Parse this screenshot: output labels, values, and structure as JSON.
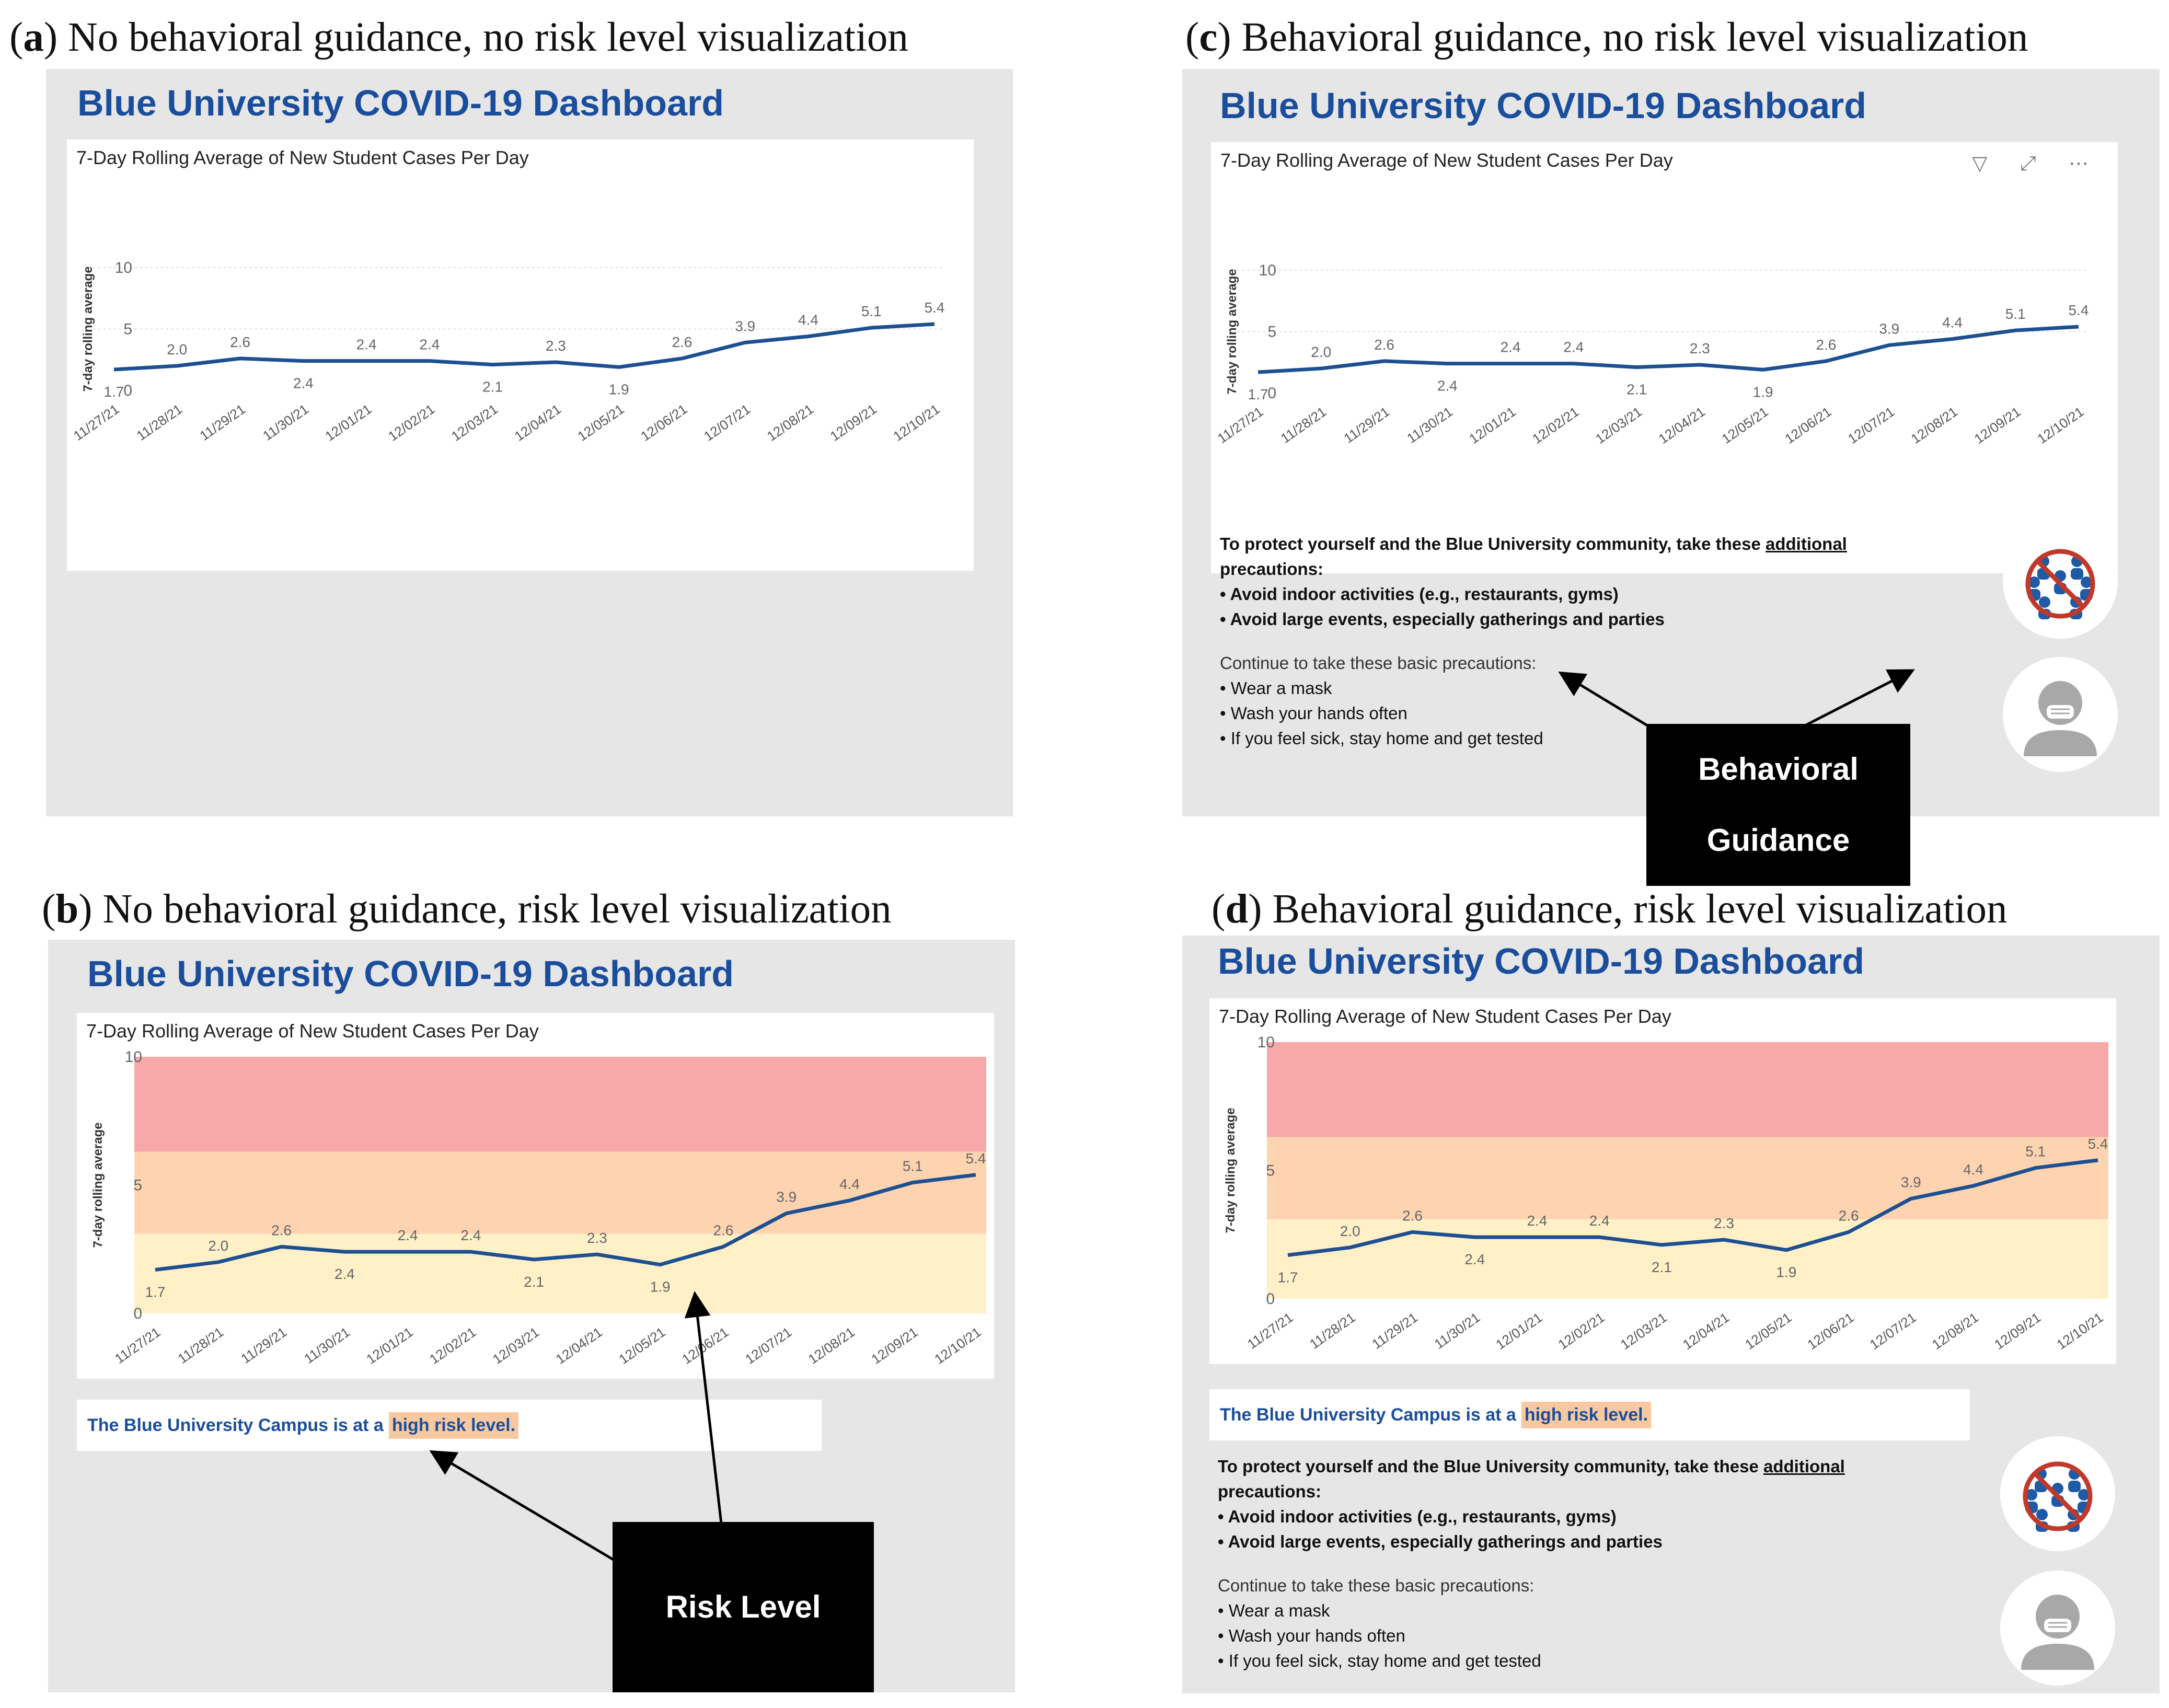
{
  "panels": {
    "a": {
      "letter": "a",
      "caption": " No behavioral guidance, no risk level visualization"
    },
    "b": {
      "letter": "b",
      "caption": " No behavioral guidance, risk level visualization"
    },
    "c": {
      "letter": "c",
      "caption": " Behavioral guidance, no risk level visualization"
    },
    "d": {
      "letter": "d",
      "caption": " Behavioral guidance, risk level visualization"
    }
  },
  "dashboard_title": "Blue University COVID-19 Dashboard",
  "risk_statement": {
    "prefix": "The Blue University Campus is at a",
    "highlight": "high risk level."
  },
  "guidance": {
    "line1_pre": "To protect yourself and the Blue University community, take these ",
    "line1_underlined": "additional",
    "line2": "precautions:",
    "additional": [
      "• Avoid indoor activities (e.g., restaurants, gyms)",
      "• Avoid large events, especially gatherings and parties"
    ],
    "basic_heading": "Continue to take these basic precautions:",
    "basic": [
      "• Wear a mask",
      "• Wash your hands often",
      "• If you feel sick, stay home and get tested"
    ]
  },
  "icons": {
    "no_gathering": "no-gathering-icon",
    "mask": "mask-person-icon",
    "chart_toolbar": "▽ ⤢ ⋯"
  },
  "callouts": {
    "behavioral": [
      "Behavioral",
      "Guidance"
    ],
    "risk": "Risk Level"
  },
  "colors": {
    "line": "#1d4f91",
    "title": "#1a4e9c",
    "risk_high": "#f7a8a8",
    "risk_medium": "#fdd3b0",
    "risk_low": "#fff0c8"
  },
  "chart_data": {
    "type": "line",
    "title": "7-Day Rolling Average of New Student Cases Per Day",
    "ylabel": "7-day rolling average",
    "xlabel": "",
    "ylim": [
      0,
      10
    ],
    "yticks": [
      0,
      5,
      10
    ],
    "categories": [
      "11/27/21",
      "11/28/21",
      "11/29/21",
      "11/30/21",
      "12/01/21",
      "12/02/21",
      "12/03/21",
      "12/04/21",
      "12/05/21",
      "12/06/21",
      "12/07/21",
      "12/08/21",
      "12/09/21",
      "12/10/21"
    ],
    "values": [
      1.7,
      2.0,
      2.6,
      2.4,
      2.4,
      2.4,
      2.1,
      2.3,
      1.9,
      2.6,
      3.9,
      4.4,
      5.1,
      5.4
    ],
    "labels": [
      "1.7",
      "2.0",
      "2.6",
      "2.4",
      "2.4",
      "2.4",
      "2.1",
      "2.3",
      "1.9",
      "2.6",
      "3.9",
      "4.4",
      "5.1",
      "5.4"
    ],
    "risk_bands": [
      {
        "name": "low",
        "from": 0,
        "to": 3.1
      },
      {
        "name": "medium",
        "from": 3.1,
        "to": 6.3
      },
      {
        "name": "high",
        "from": 6.3,
        "to": 10
      }
    ]
  }
}
